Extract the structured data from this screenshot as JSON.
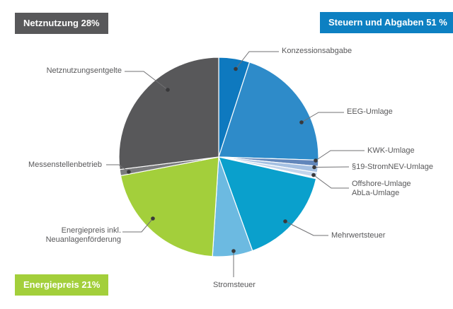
{
  "background": "#ffffff",
  "text_color": "#58585a",
  "chart_data": {
    "type": "pie",
    "title": "",
    "unit": "%",
    "start_angle": "12 o'clock",
    "direction": "clockwise",
    "groups": [
      {
        "key": "netznutzung",
        "label": "Netznutzung 28%",
        "value": 28,
        "color": "#58585a"
      },
      {
        "key": "steuern",
        "label": "Steuern und Abgaben 51 %",
        "value": 51,
        "color": "#0d80c2"
      },
      {
        "key": "energiepreis",
        "label": "Energiepreis 21%",
        "value": 21,
        "color": "#a3cf3b"
      }
    ],
    "slices": [
      {
        "key": "konzessionsabgabe",
        "label": "Konzessionsabgabe",
        "value": 5.0,
        "color": "#0e79bf",
        "group": "Steuern und Abgaben"
      },
      {
        "key": "eeg-umlage",
        "label": "EEG-Umlage",
        "value": 20.5,
        "color": "#2e8bc9",
        "group": "Steuern und Abgaben"
      },
      {
        "key": "kwk-umlage",
        "label": "KWK-Umlage",
        "value": 1.0,
        "color": "#6186bb",
        "group": "Steuern und Abgaben"
      },
      {
        "key": "stromnev-umlage",
        "label": "§19-StromNEV-Umlage",
        "value": 1.0,
        "color": "#a5c0e2",
        "group": "Steuern und Abgaben"
      },
      {
        "key": "offshore-umlage",
        "label": "Offshore-Umlage",
        "value": 0.8,
        "color": "#c3d5ec",
        "group": "Steuern und Abgaben"
      },
      {
        "key": "abla-umlage",
        "label": "AbLa-Umlage",
        "value": 0.2,
        "color": "#dde7f5",
        "group": "Steuern und Abgaben"
      },
      {
        "key": "mehrwertsteuer",
        "label": "Mehrwertsteuer",
        "value": 16.0,
        "color": "#0aa0cc",
        "group": "Steuern und Abgaben"
      },
      {
        "key": "stromsteuer",
        "label": "Stromsteuer",
        "value": 6.5,
        "color": "#6cbae1",
        "group": "Steuern und Abgaben"
      },
      {
        "key": "energiepreis",
        "label": "Energiepreis inkl. Neuanlagenförderung",
        "label_lines": [
          "Energiepreis inkl.",
          "Neuanlagenförderung"
        ],
        "value": 21.0,
        "color": "#a3cf3b",
        "group": "Energiepreis"
      },
      {
        "key": "messenstellenbetrieb",
        "label": "Messenstellenbetrieb",
        "value": 1.0,
        "color": "#7a7b7d",
        "group": "Netznutzung"
      },
      {
        "key": "netznutzungsentgelte",
        "label": "Netznutzungsentgelte",
        "value": 27.0,
        "color": "#58585a",
        "group": "Netznutzung"
      }
    ]
  }
}
